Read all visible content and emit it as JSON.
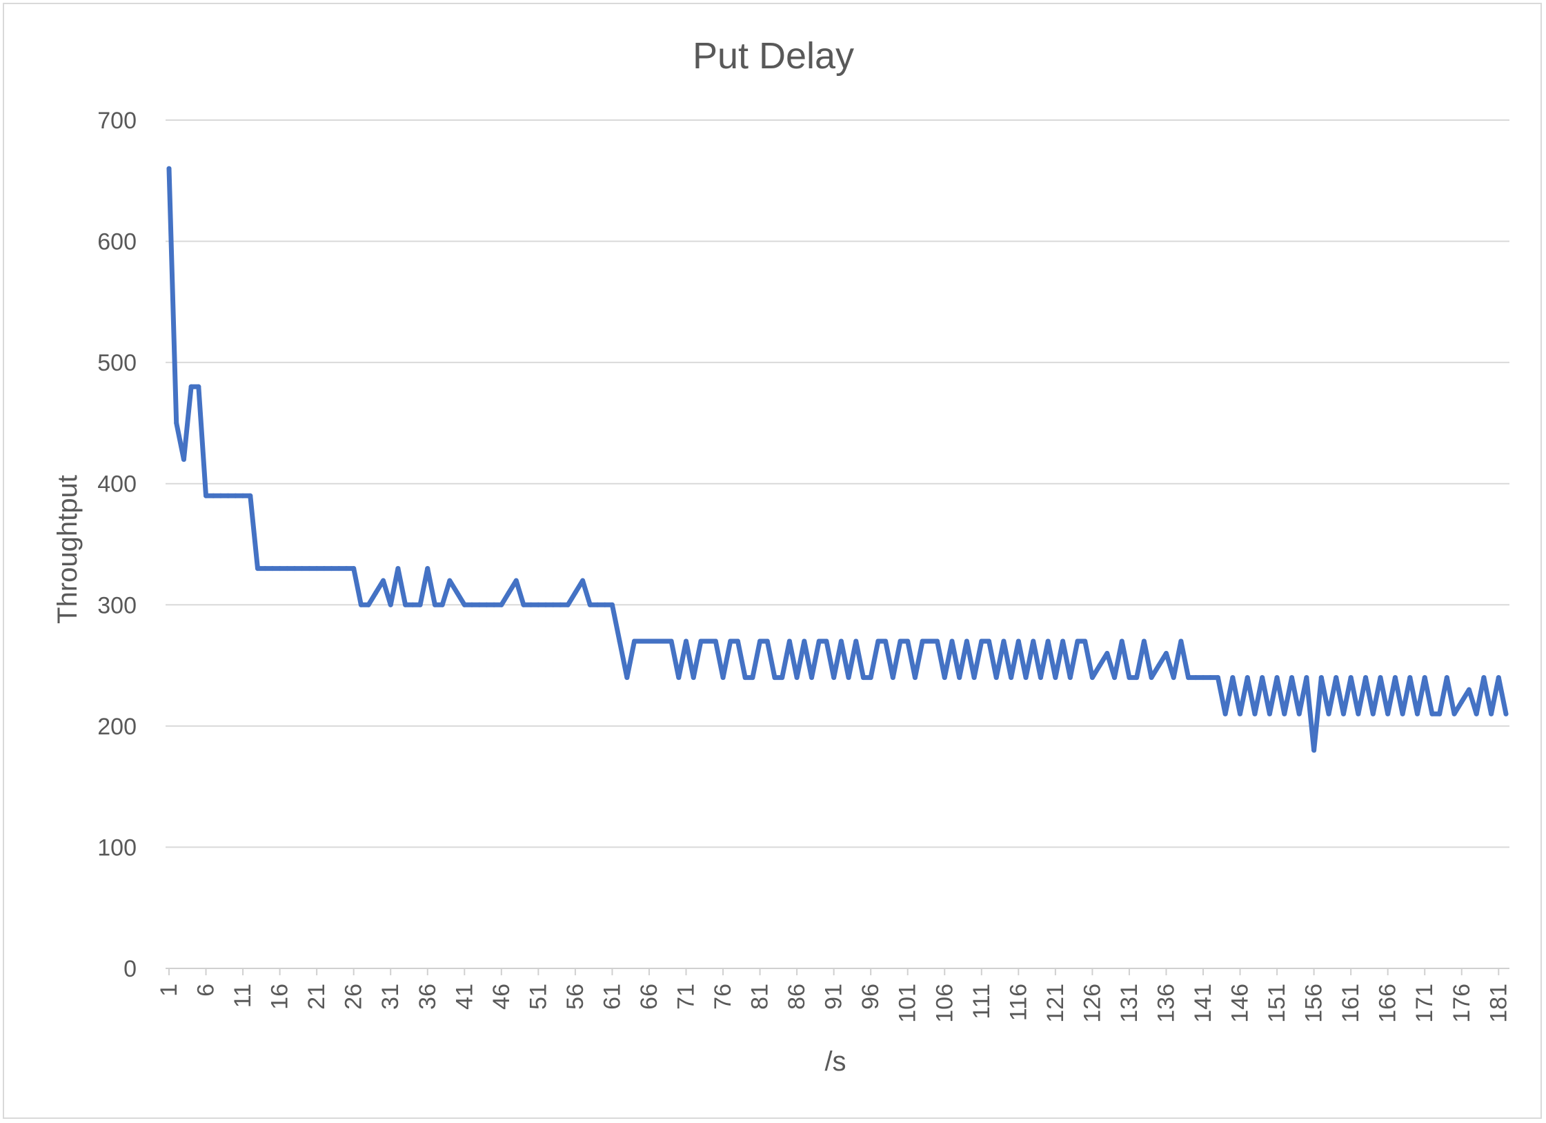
{
  "chart_data": {
    "type": "line",
    "title": "Put Delay",
    "xlabel": "/s",
    "ylabel": "Throughtput",
    "ylim": [
      0,
      700
    ],
    "yticks": [
      "0",
      "100",
      "200",
      "300",
      "400",
      "500",
      "600",
      "700"
    ],
    "xtick_labels": [
      "1",
      "6",
      "11",
      "16",
      "21",
      "26",
      "31",
      "36",
      "41",
      "46",
      "51",
      "56",
      "61",
      "66",
      "71",
      "76",
      "81",
      "86",
      "91",
      "96",
      "101",
      "106",
      "111",
      "116",
      "121",
      "126",
      "131",
      "136",
      "141",
      "146",
      "151",
      "156",
      "161",
      "166",
      "171",
      "176",
      "181"
    ],
    "grid": true,
    "legend": "none",
    "line_color": "#4472C4",
    "x_start": 1,
    "series": [
      {
        "values": [
          660,
          450,
          420,
          480,
          480,
          390,
          390,
          390,
          390,
          390,
          390,
          390,
          330,
          330,
          330,
          330,
          330,
          330,
          330,
          330,
          330,
          330,
          330,
          330,
          330,
          330,
          300,
          300,
          310,
          320,
          300,
          330,
          300,
          300,
          300,
          330,
          300,
          300,
          320,
          310,
          300,
          300,
          300,
          300,
          300,
          300,
          310,
          320,
          300,
          300,
          300,
          300,
          300,
          300,
          300,
          310,
          320,
          300,
          300,
          300,
          300,
          270,
          240,
          270,
          270,
          270,
          270,
          270,
          270,
          240,
          270,
          240,
          270,
          270,
          270,
          240,
          270,
          270,
          240,
          240,
          270,
          270,
          240,
          240,
          270,
          240,
          270,
          240,
          270,
          270,
          240,
          270,
          240,
          270,
          240,
          240,
          270,
          270,
          240,
          270,
          270,
          240,
          270,
          270,
          270,
          240,
          270,
          240,
          270,
          240,
          270,
          270,
          240,
          270,
          240,
          270,
          240,
          270,
          240,
          270,
          240,
          270,
          240,
          270,
          270,
          240,
          250,
          260,
          240,
          270,
          240,
          240,
          270,
          240,
          250,
          260,
          240,
          270,
          240,
          240,
          240,
          240,
          240,
          210,
          240,
          210,
          240,
          210,
          240,
          210,
          240,
          210,
          240,
          210,
          240,
          180,
          240,
          210,
          240,
          210,
          240,
          210,
          240,
          210,
          240,
          210,
          240,
          210,
          240,
          210,
          240,
          210,
          210,
          240,
          210,
          220,
          230,
          210,
          240,
          210,
          240,
          210
        ]
      }
    ]
  }
}
